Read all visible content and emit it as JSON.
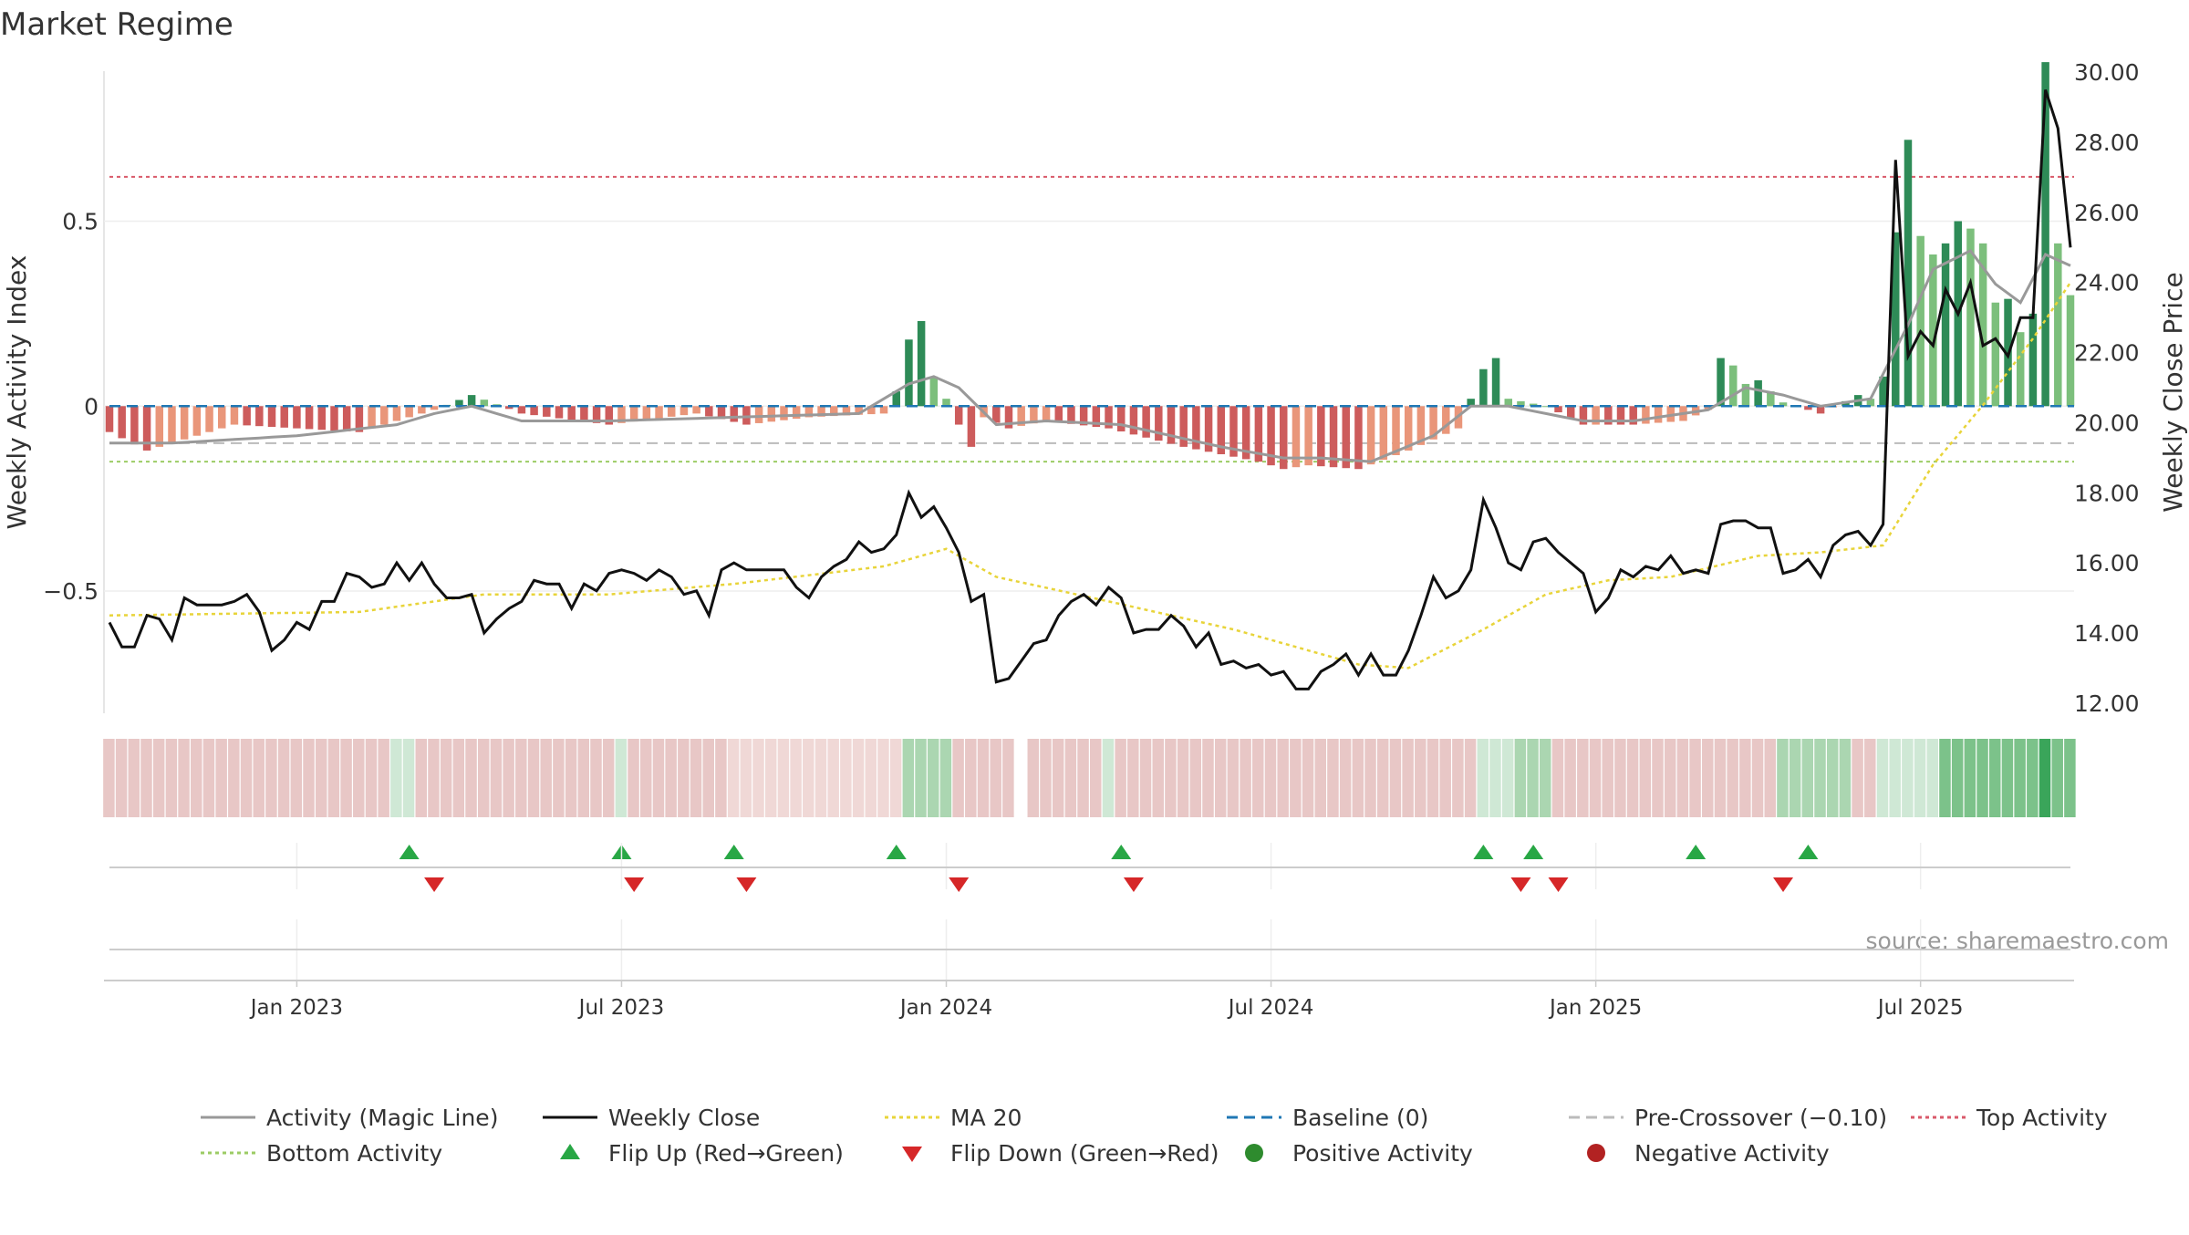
{
  "title": "Market Regime",
  "source": "source: sharemaestro.com",
  "colors": {
    "activity_line": "#999999",
    "close": "#111111",
    "ma20": "#e8d43a",
    "baseline": "#1f77b4",
    "precross": "#bbbbbb",
    "top": "#d9596a",
    "bottom": "#9ccc65",
    "pos_strong": "#2e8b57",
    "pos_light": "#7cbf7c",
    "neg_strong": "#cd5c5c",
    "neg_light": "#e9967a",
    "flip_up": "#28a745",
    "flip_down": "#d62728",
    "pos_dot": "#2e8b2e",
    "neg_dot": "#b22222"
  },
  "chart_data": {
    "type": "bar",
    "title": "Market Regime",
    "ylabel_left": "Weekly Activity Index",
    "ylabel_right": "Weekly Close Price",
    "y_left_ticks": [
      {
        "v": 0.5,
        "label": "0.5"
      },
      {
        "v": 0,
        "label": "0"
      },
      {
        "v": -0.5,
        "label": "−0.5"
      }
    ],
    "y_right_ticks": [
      {
        "v": 30,
        "label": "30.00"
      },
      {
        "v": 28,
        "label": "28.00"
      },
      {
        "v": 26,
        "label": "26.00"
      },
      {
        "v": 24,
        "label": "24.00"
      },
      {
        "v": 22,
        "label": "22.00"
      },
      {
        "v": 20,
        "label": "20.00"
      },
      {
        "v": 18,
        "label": "18.00"
      },
      {
        "v": 16,
        "label": "16.00"
      },
      {
        "v": 14,
        "label": "14.00"
      },
      {
        "v": 12,
        "label": "12.00"
      }
    ],
    "x_ticks": [
      {
        "week": 15,
        "label": "Jan 2023"
      },
      {
        "week": 41,
        "label": "Jul 2023"
      },
      {
        "week": 67,
        "label": "Jan 2024"
      },
      {
        "week": 93,
        "label": "Jul 2024"
      },
      {
        "week": 119,
        "label": "Jan 2025"
      },
      {
        "week": 145,
        "label": "Jul 2025"
      }
    ],
    "ylim_left": [
      -0.85,
      0.95
    ],
    "ylim_right": [
      11.5,
      30.5
    ],
    "n_weeks": 158,
    "reference_lines": {
      "baseline": 0,
      "pre_crossover": -0.1,
      "top_activity": 0.62,
      "bottom_activity": -0.15
    },
    "activity_knots": [
      [
        0,
        -0.07
      ],
      [
        3,
        -0.12
      ],
      [
        10,
        -0.05
      ],
      [
        20,
        -0.07
      ],
      [
        26,
        -0.01
      ],
      [
        29,
        0.03
      ],
      [
        33,
        -0.02
      ],
      [
        40,
        -0.05
      ],
      [
        47,
        -0.02
      ],
      [
        51,
        -0.05
      ],
      [
        56,
        -0.03
      ],
      [
        62,
        -0.02
      ],
      [
        63,
        0.04
      ],
      [
        64,
        0.18
      ],
      [
        65,
        0.23
      ],
      [
        66,
        0.08
      ],
      [
        67,
        0.02
      ],
      [
        68,
        -0.05
      ],
      [
        69,
        -0.11
      ],
      [
        70,
        -0.03
      ],
      [
        72,
        -0.06
      ],
      [
        75,
        -0.04
      ],
      [
        80,
        -0.06
      ],
      [
        86,
        -0.11
      ],
      [
        92,
        -0.15
      ],
      [
        94,
        -0.17
      ],
      [
        96,
        -0.16
      ],
      [
        100,
        -0.17
      ],
      [
        104,
        -0.12
      ],
      [
        108,
        -0.06
      ],
      [
        110,
        0.1
      ],
      [
        111,
        0.13
      ],
      [
        112,
        0.02
      ],
      [
        115,
        0.0
      ],
      [
        118,
        -0.05
      ],
      [
        122,
        -0.05
      ],
      [
        126,
        -0.04
      ],
      [
        128,
        -0.01
      ],
      [
        129,
        0.13
      ],
      [
        130,
        0.11
      ],
      [
        131,
        0.06
      ],
      [
        132,
        0.07
      ],
      [
        134,
        0.01
      ],
      [
        137,
        -0.02
      ],
      [
        140,
        0.03
      ],
      [
        141,
        0.02
      ],
      [
        142,
        0.08
      ],
      [
        143,
        0.47
      ],
      [
        144,
        0.72
      ],
      [
        145,
        0.46
      ],
      [
        146,
        0.41
      ],
      [
        147,
        0.44
      ],
      [
        148,
        0.5
      ],
      [
        149,
        0.48
      ],
      [
        150,
        0.44
      ],
      [
        151,
        0.28
      ],
      [
        152,
        0.29
      ],
      [
        153,
        0.2
      ],
      [
        154,
        0.25
      ],
      [
        155,
        0.93
      ],
      [
        156,
        0.44
      ],
      [
        157,
        0.3
      ]
    ],
    "activity_line_knots": [
      [
        0,
        -0.1
      ],
      [
        5,
        -0.1
      ],
      [
        15,
        -0.08
      ],
      [
        23,
        -0.05
      ],
      [
        26,
        -0.02
      ],
      [
        29,
        0.0
      ],
      [
        33,
        -0.04
      ],
      [
        40,
        -0.04
      ],
      [
        50,
        -0.03
      ],
      [
        60,
        -0.02
      ],
      [
        64,
        0.06
      ],
      [
        66,
        0.08
      ],
      [
        68,
        0.05
      ],
      [
        71,
        -0.05
      ],
      [
        75,
        -0.04
      ],
      [
        81,
        -0.05
      ],
      [
        89,
        -0.11
      ],
      [
        94,
        -0.14
      ],
      [
        97,
        -0.14
      ],
      [
        101,
        -0.15
      ],
      [
        106,
        -0.08
      ],
      [
        109,
        0.0
      ],
      [
        112,
        0.0
      ],
      [
        118,
        -0.04
      ],
      [
        122,
        -0.04
      ],
      [
        128,
        -0.01
      ],
      [
        131,
        0.05
      ],
      [
        134,
        0.03
      ],
      [
        137,
        0.0
      ],
      [
        141,
        0.02
      ],
      [
        144,
        0.22
      ],
      [
        146,
        0.37
      ],
      [
        149,
        0.42
      ],
      [
        151,
        0.33
      ],
      [
        153,
        0.28
      ],
      [
        155,
        0.41
      ],
      [
        157,
        0.38
      ]
    ],
    "close_knots": [
      [
        0,
        14.3
      ],
      [
        1,
        13.6
      ],
      [
        2,
        13.6
      ],
      [
        3,
        14.5
      ],
      [
        4,
        14.4
      ],
      [
        5,
        13.8
      ],
      [
        6,
        15.0
      ],
      [
        7,
        14.8
      ],
      [
        8,
        14.8
      ],
      [
        9,
        14.8
      ],
      [
        10,
        14.9
      ],
      [
        11,
        15.1
      ],
      [
        12,
        14.6
      ],
      [
        13,
        13.5
      ],
      [
        14,
        13.8
      ],
      [
        15,
        14.3
      ],
      [
        16,
        14.1
      ],
      [
        17,
        14.9
      ],
      [
        18,
        14.9
      ],
      [
        19,
        15.7
      ],
      [
        20,
        15.6
      ],
      [
        21,
        15.3
      ],
      [
        22,
        15.4
      ],
      [
        23,
        16.0
      ],
      [
        24,
        15.5
      ],
      [
        25,
        16.0
      ],
      [
        26,
        15.4
      ],
      [
        27,
        15.0
      ],
      [
        28,
        15.0
      ],
      [
        29,
        15.1
      ],
      [
        30,
        14.0
      ],
      [
        31,
        14.4
      ],
      [
        32,
        14.7
      ],
      [
        33,
        14.9
      ],
      [
        34,
        15.5
      ],
      [
        35,
        15.4
      ],
      [
        36,
        15.4
      ],
      [
        37,
        14.7
      ],
      [
        38,
        15.4
      ],
      [
        39,
        15.2
      ],
      [
        40,
        15.7
      ],
      [
        41,
        15.8
      ],
      [
        42,
        15.7
      ],
      [
        43,
        15.5
      ],
      [
        44,
        15.8
      ],
      [
        45,
        15.6
      ],
      [
        46,
        15.1
      ],
      [
        47,
        15.2
      ],
      [
        48,
        14.5
      ],
      [
        49,
        15.8
      ],
      [
        50,
        16.0
      ],
      [
        51,
        15.8
      ],
      [
        52,
        15.8
      ],
      [
        53,
        15.8
      ],
      [
        54,
        15.8
      ],
      [
        55,
        15.3
      ],
      [
        56,
        15.0
      ],
      [
        57,
        15.6
      ],
      [
        58,
        15.9
      ],
      [
        59,
        16.1
      ],
      [
        60,
        16.6
      ],
      [
        61,
        16.3
      ],
      [
        62,
        16.4
      ],
      [
        63,
        16.8
      ],
      [
        64,
        18.0
      ],
      [
        65,
        17.3
      ],
      [
        66,
        17.6
      ],
      [
        67,
        17.0
      ],
      [
        68,
        16.3
      ],
      [
        69,
        14.9
      ],
      [
        70,
        15.1
      ],
      [
        71,
        12.6
      ],
      [
        72,
        12.7
      ],
      [
        73,
        13.2
      ],
      [
        74,
        13.7
      ],
      [
        75,
        13.8
      ],
      [
        76,
        14.5
      ],
      [
        77,
        14.9
      ],
      [
        78,
        15.1
      ],
      [
        79,
        14.8
      ],
      [
        80,
        15.3
      ],
      [
        81,
        15.0
      ],
      [
        82,
        14.0
      ],
      [
        83,
        14.1
      ],
      [
        84,
        14.1
      ],
      [
        85,
        14.5
      ],
      [
        86,
        14.2
      ],
      [
        87,
        13.6
      ],
      [
        88,
        14.0
      ],
      [
        89,
        13.1
      ],
      [
        90,
        13.2
      ],
      [
        91,
        13.0
      ],
      [
        92,
        13.1
      ],
      [
        93,
        12.8
      ],
      [
        94,
        12.9
      ],
      [
        95,
        12.4
      ],
      [
        96,
        12.4
      ],
      [
        97,
        12.9
      ],
      [
        98,
        13.1
      ],
      [
        99,
        13.4
      ],
      [
        100,
        12.8
      ],
      [
        101,
        13.4
      ],
      [
        102,
        12.8
      ],
      [
        103,
        12.8
      ],
      [
        104,
        13.5
      ],
      [
        105,
        14.5
      ],
      [
        106,
        15.6
      ],
      [
        107,
        15.0
      ],
      [
        108,
        15.2
      ],
      [
        109,
        15.8
      ],
      [
        110,
        17.8
      ],
      [
        111,
        17.0
      ],
      [
        112,
        16.0
      ],
      [
        113,
        15.8
      ],
      [
        114,
        16.6
      ],
      [
        115,
        16.7
      ],
      [
        116,
        16.3
      ],
      [
        117,
        16.0
      ],
      [
        118,
        15.7
      ],
      [
        119,
        14.6
      ],
      [
        120,
        15.0
      ],
      [
        121,
        15.8
      ],
      [
        122,
        15.6
      ],
      [
        123,
        15.9
      ],
      [
        124,
        15.8
      ],
      [
        125,
        16.2
      ],
      [
        126,
        15.7
      ],
      [
        127,
        15.8
      ],
      [
        128,
        15.7
      ],
      [
        129,
        17.1
      ],
      [
        130,
        17.2
      ],
      [
        131,
        17.2
      ],
      [
        132,
        17.0
      ],
      [
        133,
        17.0
      ],
      [
        134,
        15.7
      ],
      [
        135,
        15.8
      ],
      [
        136,
        16.1
      ],
      [
        137,
        15.6
      ],
      [
        138,
        16.5
      ],
      [
        139,
        16.8
      ],
      [
        140,
        16.9
      ],
      [
        141,
        16.5
      ],
      [
        142,
        17.1
      ],
      [
        143,
        27.5
      ],
      [
        144,
        21.9
      ],
      [
        145,
        22.6
      ],
      [
        146,
        22.2
      ],
      [
        147,
        23.8
      ],
      [
        148,
        23.1
      ],
      [
        149,
        24.0
      ],
      [
        150,
        22.2
      ],
      [
        151,
        22.4
      ],
      [
        152,
        21.9
      ],
      [
        153,
        23.0
      ],
      [
        154,
        23.0
      ],
      [
        155,
        29.5
      ],
      [
        156,
        28.4
      ],
      [
        157,
        25.0
      ]
    ],
    "ma20_knots": [
      [
        0,
        14.5
      ],
      [
        20,
        14.6
      ],
      [
        30,
        15.1
      ],
      [
        40,
        15.1
      ],
      [
        50,
        15.4
      ],
      [
        62,
        15.9
      ],
      [
        67,
        16.4
      ],
      [
        71,
        15.6
      ],
      [
        80,
        14.9
      ],
      [
        90,
        14.1
      ],
      [
        100,
        13.1
      ],
      [
        104,
        13.0
      ],
      [
        110,
        14.1
      ],
      [
        115,
        15.1
      ],
      [
        120,
        15.5
      ],
      [
        125,
        15.6
      ],
      [
        132,
        16.2
      ],
      [
        137,
        16.3
      ],
      [
        142,
        16.5
      ],
      [
        146,
        18.8
      ],
      [
        150,
        20.5
      ],
      [
        154,
        22.4
      ],
      [
        157,
        24.0
      ]
    ],
    "regime_segments": [
      [
        0,
        23,
        "neg1"
      ],
      [
        23,
        25,
        "pos1"
      ],
      [
        25,
        41,
        "neg1"
      ],
      [
        41,
        42,
        "pos1"
      ],
      [
        42,
        50,
        "neg1"
      ],
      [
        50,
        64,
        "neg2"
      ],
      [
        64,
        68,
        "pos2"
      ],
      [
        68,
        73,
        "neg1"
      ],
      [
        74,
        80,
        "neg1"
      ],
      [
        80,
        81,
        "pos1"
      ],
      [
        81,
        110,
        "neg1"
      ],
      [
        110,
        113,
        "pos1"
      ],
      [
        113,
        116,
        "pos2"
      ],
      [
        116,
        134,
        "neg1"
      ],
      [
        134,
        140,
        "pos2"
      ],
      [
        140,
        142,
        "neg1"
      ],
      [
        142,
        147,
        "pos1"
      ],
      [
        147,
        155,
        "pos3"
      ],
      [
        155,
        156,
        "pos4"
      ],
      [
        156,
        158,
        "pos3"
      ]
    ],
    "flips_up": [
      24,
      41,
      50,
      63,
      81,
      110,
      114,
      127,
      136
    ],
    "flips_down": [
      26,
      42,
      51,
      68,
      82,
      113,
      116,
      134
    ],
    "legend": [
      {
        "label": "Activity (Magic Line)",
        "kind": "line",
        "color": "#999999",
        "dash": ""
      },
      {
        "label": "Weekly Close",
        "kind": "line",
        "color": "#111111",
        "dash": ""
      },
      {
        "label": "MA 20",
        "kind": "line",
        "color": "#e8d43a",
        "dash": "4 4"
      },
      {
        "label": "Baseline (0)",
        "kind": "line",
        "color": "#1f77b4",
        "dash": "12 7"
      },
      {
        "label": "Pre-Crossover (−0.10)",
        "kind": "line",
        "color": "#bbbbbb",
        "dash": "12 7"
      },
      {
        "label": "Top Activity",
        "kind": "line",
        "color": "#d9596a",
        "dash": "4 4"
      },
      {
        "label": "Bottom Activity",
        "kind": "line",
        "color": "#9ccc65",
        "dash": "4 4"
      },
      {
        "label": "Flip Up (Red→Green)",
        "kind": "tri-up",
        "color": "#28a745",
        "dash": ""
      },
      {
        "label": "Flip Down (Green→Red)",
        "kind": "tri-down",
        "color": "#d62728",
        "dash": ""
      },
      {
        "label": "Positive Activity",
        "kind": "dot",
        "color": "#2e8b2e",
        "dash": ""
      },
      {
        "label": "Negative Activity",
        "kind": "dot",
        "color": "#b22222",
        "dash": ""
      }
    ]
  }
}
